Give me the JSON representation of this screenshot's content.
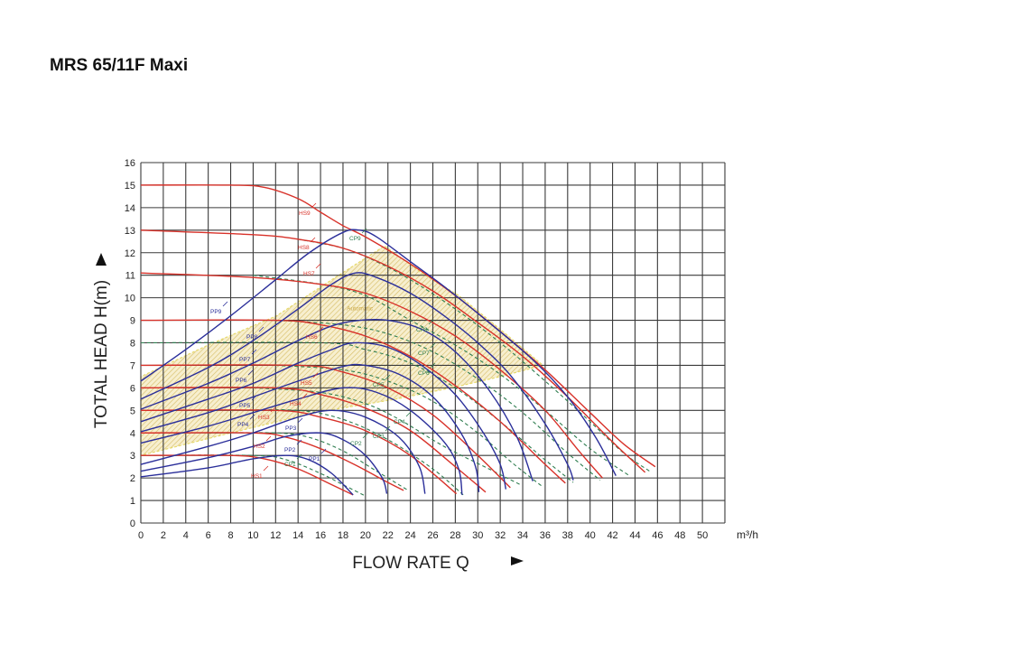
{
  "title": "MRS 65/11F Maxi",
  "chart_data": {
    "type": "line",
    "title": "MRS 65/11F Maxi",
    "xlabel": "FLOW RATE Q",
    "ylabel": "TOTAL HEAD H(m)",
    "x_unit": "m³/h",
    "xlim": [
      0,
      52
    ],
    "ylim": [
      0,
      16
    ],
    "x_ticks": [
      "0",
      "2",
      "4",
      "6",
      "8",
      "10",
      "12",
      "14",
      "16",
      "18",
      "20",
      "22",
      "24",
      "26",
      "28",
      "30",
      "32",
      "34",
      "36",
      "38",
      "40",
      "42",
      "44",
      "46",
      "48",
      "50"
    ],
    "y_ticks": [
      "0",
      "1",
      "2",
      "3",
      "4",
      "5",
      "6",
      "7",
      "8",
      "9",
      "10",
      "11",
      "12",
      "13",
      "14",
      "15",
      "16"
    ],
    "grid": true,
    "colors": {
      "HS": "#d8322a",
      "PP": "#2b2f9a",
      "CP": "#2e7d4f",
      "automatic": "#e6d96a"
    },
    "region": {
      "name": "Automatic",
      "points": [
        [
          0,
          3.0
        ],
        [
          0,
          6.5
        ],
        [
          6,
          7.9
        ],
        [
          12.1,
          9.2
        ],
        [
          17,
          10.8
        ],
        [
          21.7,
          12.3
        ],
        [
          25,
          11.1
        ],
        [
          28.3,
          10.1
        ],
        [
          32,
          8.6
        ],
        [
          35.8,
          7.0
        ],
        [
          32,
          6.5
        ],
        [
          28.1,
          6.05
        ],
        [
          22.7,
          5.5
        ],
        [
          15.5,
          4.9
        ],
        [
          8,
          4.0
        ]
      ]
    },
    "series": [
      {
        "name": "HS1",
        "group": "HS",
        "points": [
          [
            0,
            3
          ],
          [
            8,
            3
          ],
          [
            11,
            2.85
          ],
          [
            14,
            2.4
          ],
          [
            17,
            1.7
          ],
          [
            18.9,
            1.25
          ]
        ]
      },
      {
        "name": "HS2",
        "group": "HS",
        "points": [
          [
            0,
            4
          ],
          [
            10,
            4
          ],
          [
            13,
            3.8
          ],
          [
            16,
            3.3
          ],
          [
            19,
            2.6
          ],
          [
            22,
            1.8
          ],
          [
            23.4,
            1.45
          ]
        ]
      },
      {
        "name": "HS3",
        "group": "HS",
        "points": [
          [
            0,
            5
          ],
          [
            12,
            5
          ],
          [
            16,
            4.7
          ],
          [
            20,
            4.1
          ],
          [
            24,
            3.0
          ],
          [
            28.1,
            1.3
          ]
        ]
      },
      {
        "name": "HS4",
        "group": "HS",
        "points": [
          [
            0,
            6
          ],
          [
            12,
            6
          ],
          [
            16,
            5.7
          ],
          [
            20,
            5.1
          ],
          [
            24,
            4.1
          ],
          [
            28,
            2.5
          ],
          [
            30.7,
            1.37
          ]
        ]
      },
      {
        "name": "HS5",
        "group": "HS",
        "points": [
          [
            0,
            7
          ],
          [
            14,
            7
          ],
          [
            18,
            6.7
          ],
          [
            22,
            6.0
          ],
          [
            26,
            4.8
          ],
          [
            30,
            3.0
          ],
          [
            32.9,
            1.57
          ]
        ]
      },
      {
        "name": "HS6",
        "group": "HS",
        "points": [
          [
            0,
            9
          ],
          [
            12,
            9
          ],
          [
            16,
            8.8
          ],
          [
            20,
            8.3
          ],
          [
            24,
            7.4
          ],
          [
            28,
            6.1
          ],
          [
            32,
            4.5
          ],
          [
            36,
            2.6
          ],
          [
            37.8,
            1.77
          ]
        ]
      },
      {
        "name": "HS7",
        "group": "HS",
        "points": [
          [
            0,
            11.1
          ],
          [
            10,
            10.9
          ],
          [
            16,
            10.6
          ],
          [
            20,
            10.2
          ],
          [
            24,
            9.4
          ],
          [
            28,
            8.3
          ],
          [
            32,
            6.8
          ],
          [
            36,
            5.0
          ],
          [
            39,
            3.2
          ],
          [
            41.1,
            2.0
          ]
        ]
      },
      {
        "name": "HS8",
        "group": "HS",
        "points": [
          [
            0,
            13
          ],
          [
            10,
            12.8
          ],
          [
            14,
            12.6
          ],
          [
            18,
            12.2
          ],
          [
            22,
            11.4
          ],
          [
            26,
            10.3
          ],
          [
            30,
            8.9
          ],
          [
            34,
            7.4
          ],
          [
            38,
            5.6
          ],
          [
            42,
            3.6
          ],
          [
            44.9,
            2.25
          ]
        ]
      },
      {
        "name": "HS9",
        "group": "HS",
        "points": [
          [
            0,
            15
          ],
          [
            8,
            15
          ],
          [
            11,
            14.9
          ],
          [
            14,
            14.4
          ],
          [
            16,
            13.8
          ],
          [
            18,
            13.2
          ],
          [
            20,
            12.7
          ],
          [
            24,
            11.5
          ],
          [
            28,
            10.1
          ],
          [
            32,
            8.5
          ],
          [
            36,
            6.8
          ],
          [
            40,
            4.9
          ],
          [
            43,
            3.5
          ],
          [
            45.8,
            2.5
          ]
        ]
      },
      {
        "name": "PP1",
        "group": "PP",
        "points": [
          [
            0,
            2.05
          ],
          [
            6,
            2.45
          ],
          [
            10,
            2.85
          ],
          [
            13,
            3.0
          ],
          [
            15,
            2.8
          ],
          [
            17,
            2.2
          ],
          [
            18.9,
            1.25
          ]
        ]
      },
      {
        "name": "PP2",
        "group": "PP",
        "points": [
          [
            0,
            2.3
          ],
          [
            6,
            2.9
          ],
          [
            10,
            3.4
          ],
          [
            13,
            3.85
          ],
          [
            16,
            4.0
          ],
          [
            18,
            3.7
          ],
          [
            20,
            3.0
          ],
          [
            21.5,
            2.0
          ],
          [
            21.9,
            1.3
          ]
        ]
      },
      {
        "name": "PP3",
        "group": "PP",
        "points": [
          [
            0,
            2.6
          ],
          [
            6,
            3.4
          ],
          [
            10,
            4.0
          ],
          [
            14,
            4.7
          ],
          [
            17,
            5.0
          ],
          [
            20,
            4.7
          ],
          [
            23,
            3.8
          ],
          [
            24.8,
            2.5
          ],
          [
            25.3,
            1.3
          ]
        ]
      },
      {
        "name": "PP4",
        "group": "PP",
        "points": [
          [
            0,
            3.55
          ],
          [
            6,
            4.3
          ],
          [
            10,
            4.9
          ],
          [
            14,
            5.5
          ],
          [
            18,
            6.0
          ],
          [
            21,
            5.8
          ],
          [
            24,
            5.0
          ],
          [
            27,
            3.6
          ],
          [
            28.3,
            2.4
          ],
          [
            28.6,
            1.25
          ]
        ]
      },
      {
        "name": "PP5",
        "group": "PP",
        "points": [
          [
            0,
            4.05
          ],
          [
            6,
            4.9
          ],
          [
            10,
            5.6
          ],
          [
            14,
            6.3
          ],
          [
            18,
            6.95
          ],
          [
            20,
            7.0
          ],
          [
            23,
            6.6
          ],
          [
            26,
            5.6
          ],
          [
            28.5,
            4.0
          ],
          [
            29.8,
            2.5
          ],
          [
            30.1,
            1.37
          ]
        ]
      },
      {
        "name": "PP6",
        "group": "PP",
        "points": [
          [
            0,
            4.5
          ],
          [
            6,
            5.5
          ],
          [
            10,
            6.2
          ],
          [
            14,
            7.1
          ],
          [
            17,
            7.7
          ],
          [
            19,
            8.0
          ],
          [
            22,
            7.8
          ],
          [
            25,
            7.0
          ],
          [
            28,
            5.7
          ],
          [
            30.5,
            4.0
          ],
          [
            32,
            2.6
          ],
          [
            32.5,
            1.5
          ]
        ]
      },
      {
        "name": "PP7",
        "group": "PP",
        "points": [
          [
            0,
            5.05
          ],
          [
            6,
            6.2
          ],
          [
            10,
            7.1
          ],
          [
            14,
            8.1
          ],
          [
            17,
            8.75
          ],
          [
            19.5,
            9.0
          ],
          [
            22,
            9.0
          ],
          [
            25,
            8.6
          ],
          [
            28,
            7.6
          ],
          [
            31,
            5.9
          ],
          [
            33.5,
            3.8
          ],
          [
            34.9,
            1.86
          ]
        ]
      },
      {
        "name": "PP8",
        "group": "PP",
        "points": [
          [
            0,
            5.5
          ],
          [
            6,
            6.9
          ],
          [
            10,
            8.1
          ],
          [
            14,
            9.5
          ],
          [
            17,
            10.6
          ],
          [
            19.1,
            11.1
          ],
          [
            21,
            10.9
          ],
          [
            24,
            10.2
          ],
          [
            27,
            9.2
          ],
          [
            30,
            8.0
          ],
          [
            33,
            6.5
          ],
          [
            36,
            4.4
          ],
          [
            38,
            2.6
          ],
          [
            38.5,
            1.9
          ]
        ]
      },
      {
        "name": "PP9",
        "group": "PP",
        "points": [
          [
            0,
            6.3
          ],
          [
            4,
            7.7
          ],
          [
            8,
            9.2
          ],
          [
            12,
            10.8
          ],
          [
            15,
            12.0
          ],
          [
            18,
            12.9
          ],
          [
            19.5,
            13.0
          ],
          [
            21,
            12.7
          ],
          [
            24,
            11.6
          ],
          [
            27,
            10.5
          ],
          [
            31,
            8.9
          ],
          [
            35,
            7.2
          ],
          [
            38,
            5.6
          ],
          [
            40.5,
            3.8
          ],
          [
            42.3,
            2.1
          ]
        ]
      },
      {
        "name": "CP1",
        "group": "CP",
        "points": [
          [
            0,
            3
          ],
          [
            10,
            3
          ],
          [
            13,
            2.8
          ],
          [
            16,
            2.2
          ],
          [
            18,
            1.7
          ],
          [
            20,
            1.2
          ]
        ]
      },
      {
        "name": "CP2",
        "group": "CP",
        "points": [
          [
            6,
            4
          ],
          [
            12,
            4
          ],
          [
            15,
            3.8
          ],
          [
            18,
            3.2
          ],
          [
            21,
            2.3
          ],
          [
            23.8,
            1.45
          ]
        ]
      },
      {
        "name": "CP3",
        "group": "CP",
        "points": [
          [
            8,
            5
          ],
          [
            14,
            5
          ],
          [
            18,
            4.6
          ],
          [
            22,
            3.7
          ],
          [
            26,
            2.4
          ],
          [
            28.7,
            1.25
          ]
        ]
      },
      {
        "name": "CP4",
        "group": "CP",
        "points": [
          [
            10,
            6
          ],
          [
            16,
            5.8
          ],
          [
            20,
            5.3
          ],
          [
            23,
            4.6
          ],
          [
            27,
            3.4
          ],
          [
            31,
            2.4
          ],
          [
            33.8,
            1.7
          ]
        ]
      },
      {
        "name": "CP5",
        "group": "CP",
        "points": [
          [
            12,
            7
          ],
          [
            18,
            6.8
          ],
          [
            22,
            6.3
          ],
          [
            26,
            5.4
          ],
          [
            30,
            4.0
          ],
          [
            33,
            2.7
          ],
          [
            35.8,
            1.6
          ]
        ]
      },
      {
        "name": "CP6",
        "group": "CP",
        "points": [
          [
            0,
            8
          ],
          [
            16,
            8
          ],
          [
            20,
            7.7
          ],
          [
            24,
            7.1
          ],
          [
            28,
            6.0
          ],
          [
            32,
            4.5
          ],
          [
            36,
            2.8
          ],
          [
            38.5,
            1.8
          ]
        ]
      },
      {
        "name": "CP7",
        "group": "CP",
        "points": [
          [
            12,
            9
          ],
          [
            18,
            8.8
          ],
          [
            22,
            8.4
          ],
          [
            26,
            7.6
          ],
          [
            30,
            6.4
          ],
          [
            34,
            4.9
          ],
          [
            38,
            3.1
          ],
          [
            40.9,
            1.9
          ]
        ]
      },
      {
        "name": "CP8",
        "group": "CP",
        "points": [
          [
            10,
            11
          ],
          [
            16,
            10.6
          ],
          [
            20,
            10.1
          ],
          [
            24,
            9.0
          ],
          [
            28,
            7.9
          ],
          [
            32,
            6.6
          ],
          [
            36,
            5.0
          ],
          [
            40,
            3.3
          ],
          [
            43.5,
            2.1
          ]
        ]
      },
      {
        "name": "CP9",
        "group": "CP",
        "points": [
          [
            14,
            12.6
          ],
          [
            18,
            12.2
          ],
          [
            21,
            11.6
          ],
          [
            24,
            10.8
          ],
          [
            28,
            9.5
          ],
          [
            32,
            8.0
          ],
          [
            36,
            6.3
          ],
          [
            40,
            4.5
          ],
          [
            43,
            3.1
          ],
          [
            45.3,
            2.3
          ]
        ]
      }
    ]
  }
}
